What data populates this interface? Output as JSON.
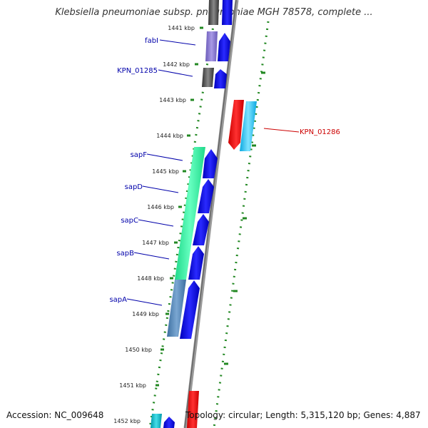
{
  "title": "Klebsiella pneumoniae subsp. pneumoniae MGH 78578, complete ...",
  "footer": {
    "accession": "Accession: NC_009648",
    "topology": "Topology: circular; Length: 5,315,120 bp; Genes: 4,887"
  },
  "ticks": [
    "1441 kbp",
    "1442 kbp",
    "1443 kbp",
    "1444 kbp",
    "1445 kbp",
    "1446 kbp",
    "1447 kbp",
    "1448 kbp",
    "1449 kbp",
    "1450 kbp",
    "1451 kbp",
    "1452 kbp"
  ],
  "gene_labels": [
    {
      "name": "fabI",
      "strand": "reverse",
      "color": "#0000aa"
    },
    {
      "name": "KPN_01285",
      "strand": "reverse",
      "color": "#0000aa"
    },
    {
      "name": "KPN_01286",
      "strand": "forward",
      "color": "#cc0000"
    },
    {
      "name": "sapF",
      "strand": "reverse",
      "color": "#0000aa"
    },
    {
      "name": "sapD",
      "strand": "reverse",
      "color": "#0000aa"
    },
    {
      "name": "sapC",
      "strand": "reverse",
      "color": "#0000aa"
    },
    {
      "name": "sapB",
      "strand": "reverse",
      "color": "#0000aa"
    },
    {
      "name": "sapA",
      "strand": "reverse",
      "color": "#0000aa"
    }
  ],
  "colors": {
    "backbone": "#888888",
    "reverse_cds": "#0000dd",
    "forward_cds": "#ee0000",
    "forward_cog": "#22bbee",
    "sap_cog": "#33ee99",
    "sapA_cog": "#5588bb",
    "fabI_cog": "#8877cc",
    "kpn01285_cog": "#555555",
    "dotted_ring": "#228822"
  }
}
